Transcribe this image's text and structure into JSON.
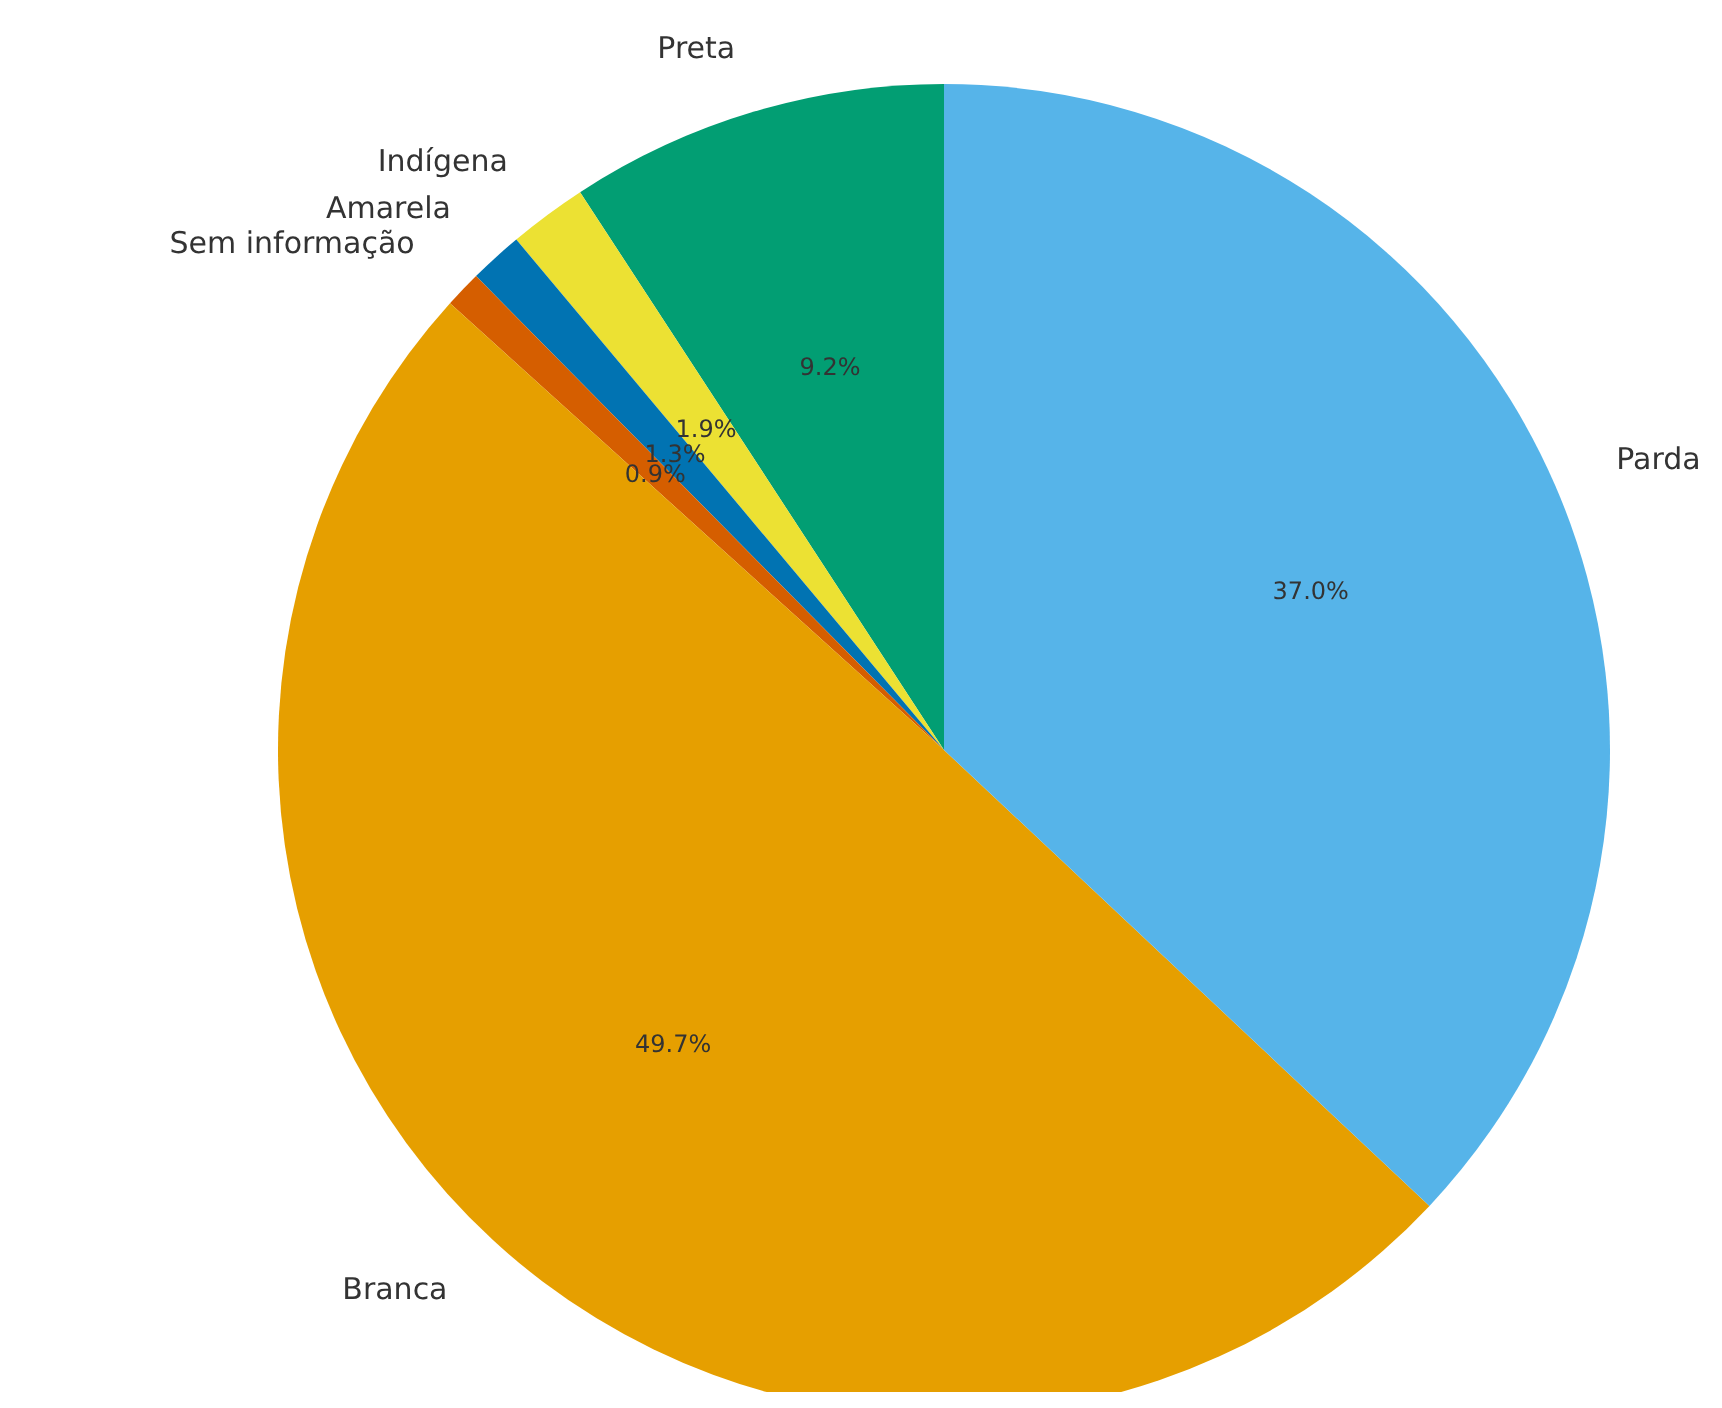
{
  "chart_data": {
    "type": "pie",
    "categories": [
      "Preta",
      "Indígena",
      "Amarela",
      "Sem informação",
      "Branca",
      "Parda"
    ],
    "values": [
      9.2,
      1.9,
      1.3,
      0.9,
      49.7,
      37.0
    ],
    "colors": [
      "#029e73",
      "#ece133",
      "#0173b2",
      "#d55e00",
      "#e69f00",
      "#56b4e9"
    ],
    "value_labels": [
      "9.2%",
      "1.9%",
      "1.3%",
      "0.9%",
      "49.7%",
      "37.0%"
    ]
  }
}
